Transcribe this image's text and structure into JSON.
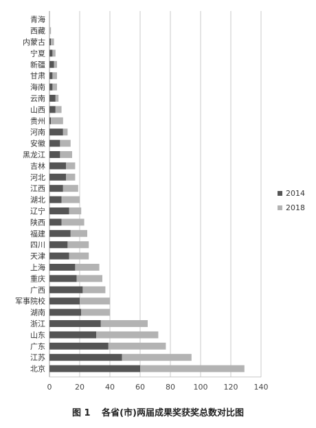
{
  "figure": {
    "number_label": "图 1",
    "caption": "各省(市)两届成果奖获奖总数对比图"
  },
  "chart_data": {
    "type": "bar",
    "orientation": "horizontal",
    "stacked": true,
    "categories": [
      "青海",
      "西藏",
      "内蒙古",
      "宁夏",
      "新疆",
      "甘肃",
      "海南",
      "云南",
      "山西",
      "贵州",
      "河南",
      "安徽",
      "黑龙江",
      "吉林",
      "河北",
      "江西",
      "湖北",
      "辽宁",
      "陕西",
      "福建",
      "四川",
      "天津",
      "上海",
      "重庆",
      "广西",
      "军事院校",
      "湖南",
      "浙江",
      "山东",
      "广东",
      "江苏",
      "北京"
    ],
    "series": [
      {
        "name": "2014",
        "color": "#555555",
        "values": [
          0,
          0,
          1,
          2,
          3,
          2,
          2,
          4,
          4,
          1,
          9,
          7,
          7,
          11,
          11,
          9,
          8,
          13,
          8,
          14,
          12,
          13,
          17,
          18,
          22,
          20,
          21,
          34,
          31,
          39,
          48,
          60
        ]
      },
      {
        "name": "2018",
        "color": "#b3b3b3",
        "values": [
          0,
          1,
          2,
          2,
          2,
          3,
          3,
          2,
          4,
          8,
          3,
          7,
          8,
          6,
          6,
          10,
          12,
          8,
          15,
          11,
          14,
          13,
          16,
          17,
          15,
          20,
          19,
          31,
          41,
          38,
          46,
          69
        ]
      }
    ],
    "x_ticks": [
      "0",
      "20",
      "40",
      "60",
      "80",
      "100",
      "120",
      "140"
    ],
    "xlim": [
      0,
      140
    ],
    "grid": true,
    "legend": "right"
  }
}
